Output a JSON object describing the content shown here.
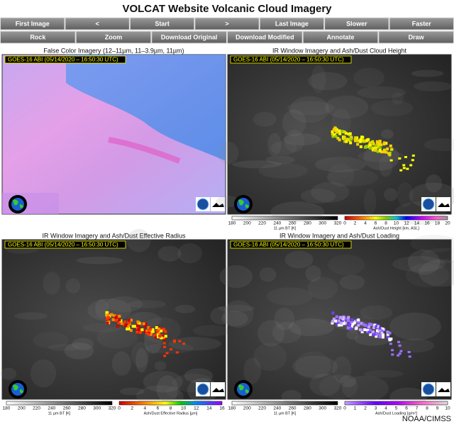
{
  "header": {
    "title": "VOLCAT Website Volcanic Cloud Imagery"
  },
  "toolbar": {
    "row1": [
      "First Image",
      "<",
      "Start",
      ">",
      "Last Image",
      "Slower",
      "Faster"
    ],
    "row2": [
      "Rock",
      "Zoom",
      "Download Original",
      "Download Modified",
      "Annotate",
      "Draw"
    ]
  },
  "panels": [
    {
      "title": "False Color Imagery (12–11µm, 11–3.9µm, 11µm)",
      "timestamp": "GOES-16 ABI (05/14/2020 – 16:50:30 UTC)",
      "colorbars": []
    },
    {
      "title": "IR Window Imagery and Ash/Dust Cloud Height",
      "timestamp": "GOES-16 ABI (05/14/2020 – 16:50:30 UTC)",
      "colorbars": [
        {
          "ticks": [
            180,
            200,
            220,
            240,
            260,
            280,
            300,
            320
          ],
          "label": "11 µm BT [K]"
        },
        {
          "ticks": [
            0,
            2,
            4,
            6,
            8,
            10,
            12,
            14,
            16,
            18,
            20
          ],
          "label": "Ash/Dust Height [km, ASL]"
        }
      ]
    },
    {
      "title": "IR Window Imagery and Ash/Dust Effective Radius",
      "timestamp": "GOES-16 ABI (05/14/2020 – 16:50:30 UTC)",
      "colorbars": [
        {
          "ticks": [
            180,
            200,
            220,
            240,
            260,
            280,
            300,
            320
          ],
          "label": "11 µm BT [K]"
        },
        {
          "ticks": [
            0,
            2,
            4,
            6,
            8,
            10,
            12,
            14,
            16
          ],
          "label": "Ash/Dust Effective Radius [µm]"
        }
      ]
    },
    {
      "title": "IR Window Imagery and Ash/Dust Loading",
      "timestamp": "GOES-16 ABI (05/14/2020 – 16:50:30 UTC)",
      "colorbars": [
        {
          "ticks": [
            180,
            200,
            220,
            240,
            260,
            280,
            300,
            320
          ],
          "label": "11 µm BT [K]"
        },
        {
          "ticks": [
            0,
            1,
            2,
            3,
            4,
            5,
            6,
            7,
            8,
            9,
            10
          ],
          "label": "Ash/Dust Loading [g/m²]"
        }
      ]
    }
  ],
  "footer": {
    "credit": "NOAA/CIMSS"
  }
}
